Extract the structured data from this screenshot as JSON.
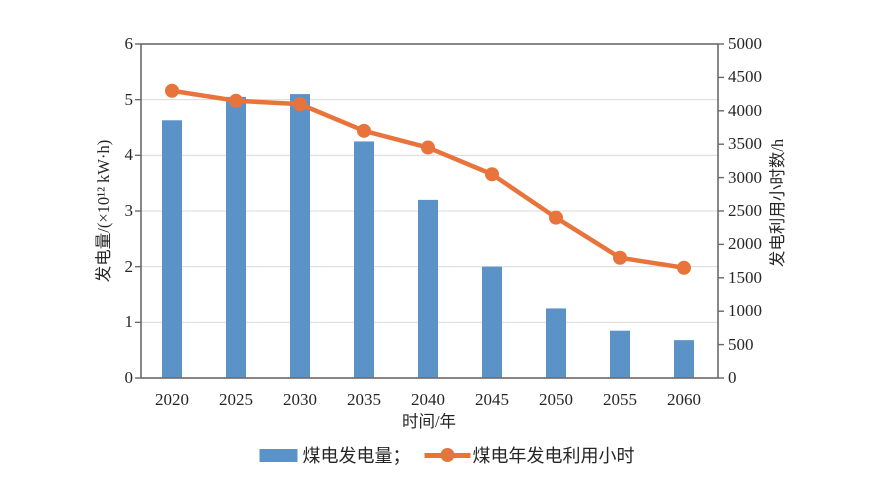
{
  "chart_data": {
    "type": "combo-bar-line",
    "categories": [
      "2020",
      "2025",
      "2030",
      "2035",
      "2040",
      "2045",
      "2050",
      "2055",
      "2060"
    ],
    "series": [
      {
        "name": "煤电发电量",
        "type": "bar",
        "axis": "left",
        "color": "#5b93c9",
        "values": [
          4.63,
          5.05,
          5.1,
          4.25,
          3.2,
          2.0,
          1.25,
          0.85,
          0.68
        ]
      },
      {
        "name": "煤电年发电利用小时",
        "type": "line",
        "axis": "right",
        "color": "#e8743b",
        "values": [
          4300,
          4150,
          4100,
          3700,
          3450,
          3050,
          2400,
          1800,
          1650
        ]
      }
    ],
    "xlabel": "时间/年",
    "ylabel_left": "发电量/(×10¹² kW·h)",
    "ylabel_right": "发电利用小时数/h",
    "ylim_left": [
      0,
      6
    ],
    "ytick_step_left": 1,
    "ylim_right": [
      0,
      5000
    ],
    "ytick_step_right": 500,
    "grid": "horizontal-at-left-axis-integers",
    "legend_position": "bottom-center",
    "legend": [
      {
        "label": "煤电发电量；",
        "swatch": "bar"
      },
      {
        "label": "煤电年发电利用小时",
        "swatch": "line-marker"
      }
    ],
    "colors": {
      "grid": "#d9d9d9",
      "axis_border": "#6a6a6a",
      "text": "#262626",
      "background": "#ffffff"
    }
  }
}
